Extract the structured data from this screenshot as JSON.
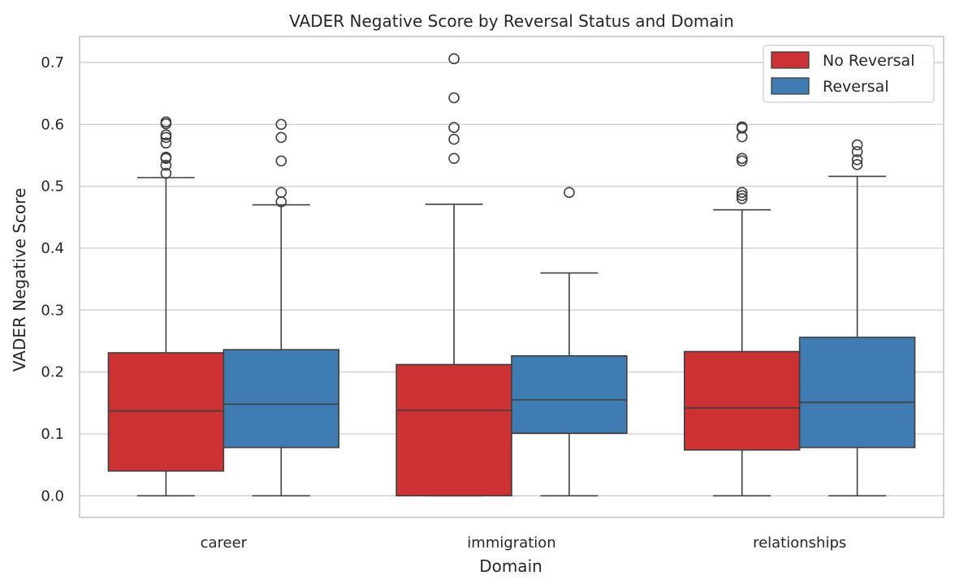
{
  "chart_data": {
    "type": "box",
    "title": "VADER Negative Score by Reversal Status and Domain",
    "xlabel": "Domain",
    "ylabel": "VADER Negative Score",
    "ylim": [
      -0.035,
      0.742
    ],
    "yticks": [
      "0.0",
      "0.1",
      "0.2",
      "0.3",
      "0.4",
      "0.5",
      "0.6",
      "0.7"
    ],
    "grid": true,
    "legend_position": "top-right",
    "categories": [
      "career",
      "immigration",
      "relationships"
    ],
    "series": [
      {
        "name": "No Reversal",
        "color": "#cc3133",
        "boxes": [
          {
            "whisker_low": 0.0,
            "q1": 0.04,
            "median": 0.137,
            "q3": 0.231,
            "whisker_high": 0.514,
            "outliers": [
              0.521,
              0.534,
              0.545,
              0.547,
              0.57,
              0.579,
              0.583,
              0.601,
              0.604
            ]
          },
          {
            "whisker_low": 0.0,
            "q1": 0.0,
            "median": 0.138,
            "q3": 0.212,
            "whisker_high": 0.471,
            "outliers": [
              0.545,
              0.576,
              0.595,
              0.643,
              0.706
            ]
          },
          {
            "whisker_low": 0.0,
            "q1": 0.074,
            "median": 0.142,
            "q3": 0.233,
            "whisker_high": 0.462,
            "outliers": [
              0.48,
              0.485,
              0.49,
              0.541,
              0.545,
              0.58,
              0.594,
              0.596
            ]
          }
        ]
      },
      {
        "name": "Reversal",
        "color": "#3f7cb2",
        "boxes": [
          {
            "whisker_low": 0.0,
            "q1": 0.078,
            "median": 0.148,
            "q3": 0.236,
            "whisker_high": 0.47,
            "outliers": [
              0.475,
              0.49,
              0.541,
              0.579,
              0.6
            ]
          },
          {
            "whisker_low": 0.0,
            "q1": 0.101,
            "median": 0.155,
            "q3": 0.226,
            "whisker_high": 0.36,
            "outliers": [
              0.49
            ]
          },
          {
            "whisker_low": 0.0,
            "q1": 0.078,
            "median": 0.151,
            "q3": 0.256,
            "whisker_high": 0.516,
            "outliers": [
              0.535,
              0.543,
              0.556,
              0.567
            ]
          }
        ]
      }
    ]
  }
}
